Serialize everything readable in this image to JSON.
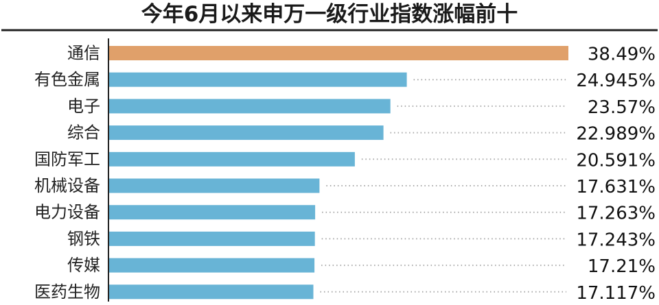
{
  "chart_data": {
    "type": "bar",
    "orientation": "horizontal",
    "title": "今年6月以来申万一级行业指数涨幅前十",
    "categories": [
      "通信",
      "有色金属",
      "电子",
      "综合",
      "国防军工",
      "机械设备",
      "电力设备",
      "钢铁",
      "传媒",
      "医药生物"
    ],
    "values": [
      38.49,
      24.945,
      23.57,
      22.989,
      20.591,
      17.631,
      17.263,
      17.243,
      17.21,
      17.117
    ],
    "value_labels": [
      "38.49%",
      "24.945%",
      "23.57%",
      "22.989%",
      "20.591%",
      "17.631%",
      "17.263%",
      "17.243%",
      "17.21%",
      "17.117%"
    ],
    "xlabel": "",
    "ylabel": "",
    "xlim": [
      0,
      38.49
    ],
    "grid": false,
    "colors": {
      "highlight": "#E0A06A",
      "bar": "#68B4D6",
      "leader": "#a8a8a8",
      "axis": "#222222"
    }
  }
}
